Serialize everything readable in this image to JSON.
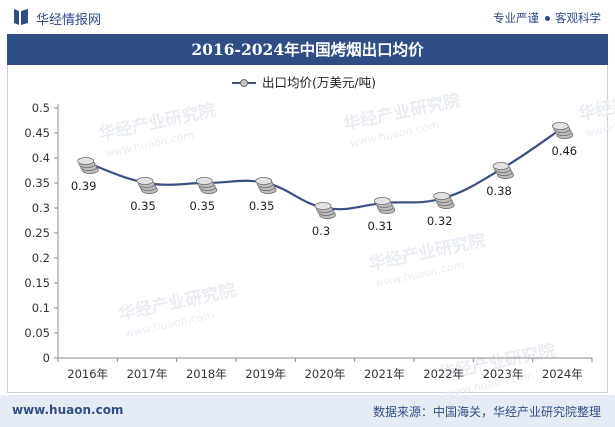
{
  "header": {
    "brand": "华经情报网",
    "tagline_left": "专业严谨",
    "tagline_right": "客观科学"
  },
  "footer": {
    "website": "www.huaon.com",
    "source": "数据来源：中国海关，华经产业研究院整理"
  },
  "watermark_text": "华经产业研究院",
  "watermark_url": "www.huaon.com",
  "colors": {
    "title_bar": "#2f4e86",
    "line": "#3b4f86",
    "footer_bg": "#e6ecf5"
  },
  "chart_data": {
    "type": "line",
    "title": "2016-2024年中国烤烟出口均价",
    "legend_position": "top-center",
    "grid": false,
    "categories": [
      "2016年",
      "2017年",
      "2018年",
      "2019年",
      "2020年",
      "2021年",
      "2022年",
      "2023年",
      "2024年"
    ],
    "series": [
      {
        "name": "出口均价(万美元/吨)",
        "values": [
          0.39,
          0.35,
          0.35,
          0.35,
          0.3,
          0.31,
          0.32,
          0.38,
          0.46
        ],
        "labels": [
          "0.39",
          "0.35",
          "0.35",
          "0.35",
          "0.3",
          "0.31",
          "0.32",
          "0.38",
          "0.46"
        ]
      }
    ],
    "yticks": [
      "0",
      "0.05",
      "0.1",
      "0.15",
      "0.2",
      "0.25",
      "0.3",
      "0.35",
      "0.4",
      "0.45",
      "0.5"
    ],
    "ylim": [
      0,
      0.5
    ]
  }
}
